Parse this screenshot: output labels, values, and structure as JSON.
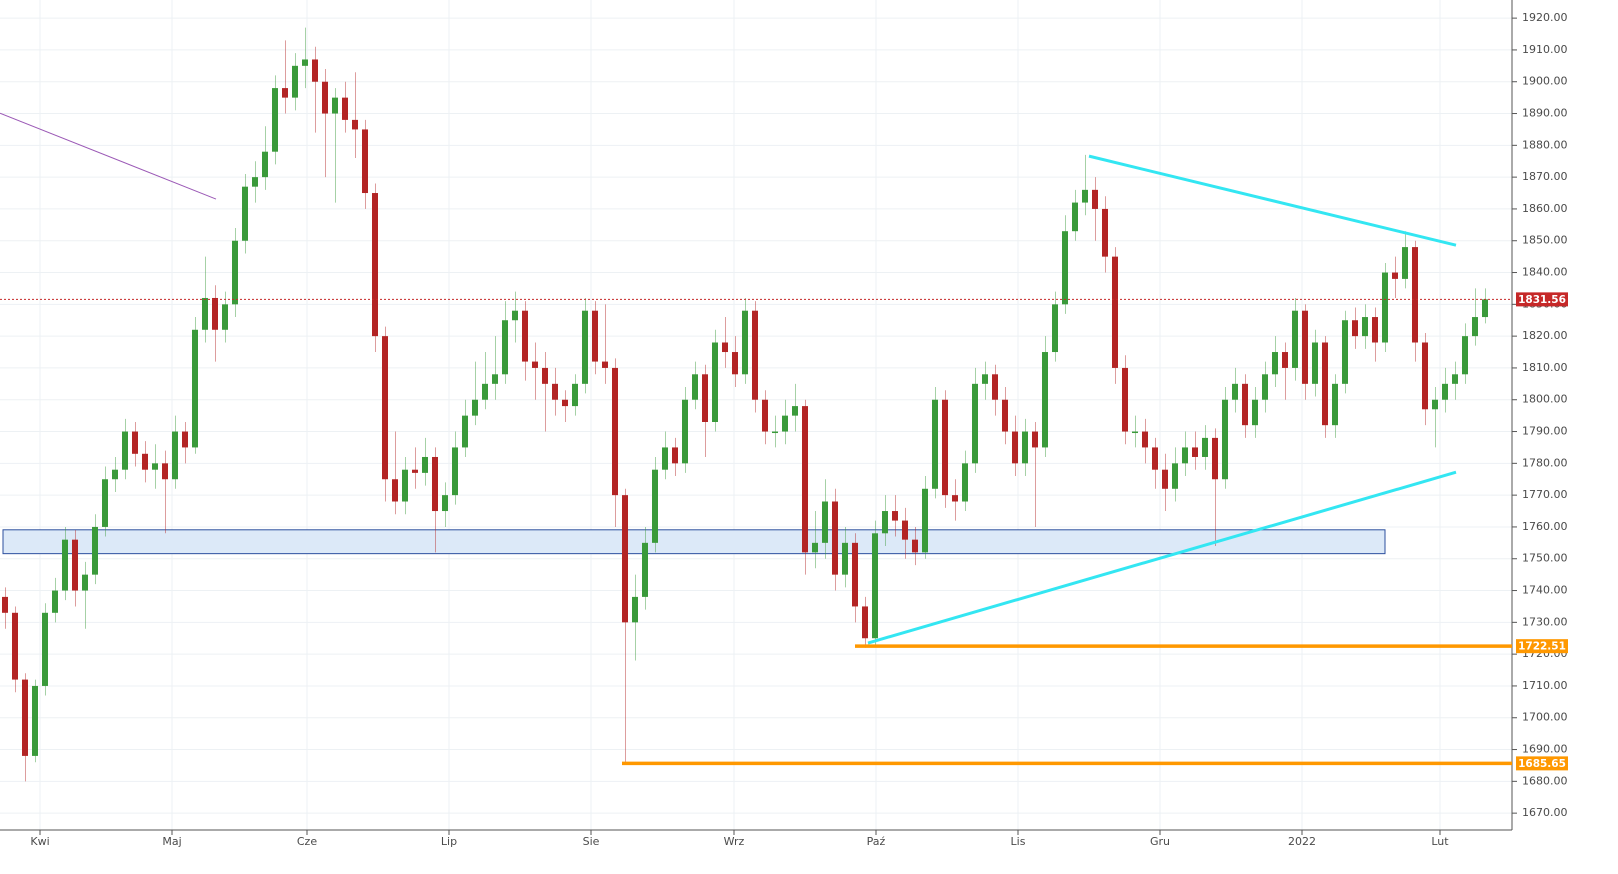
{
  "chart_data": {
    "type": "candlestick",
    "up_color": "#3a9a3a",
    "down_color": "#b32525",
    "grid": true,
    "xlim": [
      -0.5,
      150.7
    ],
    "ylim": [
      1664.7,
      1925.7
    ],
    "xticks": [
      {
        "value": 3.5,
        "label": "Kwi"
      },
      {
        "value": 16.7,
        "label": "Maj"
      },
      {
        "value": 30.2,
        "label": "Cze"
      },
      {
        "value": 44.4,
        "label": "Lip"
      },
      {
        "value": 58.6,
        "label": "Sie"
      },
      {
        "value": 72.9,
        "label": "Wrz"
      },
      {
        "value": 87.1,
        "label": "Paź"
      },
      {
        "value": 101.3,
        "label": "Lis"
      },
      {
        "value": 115.5,
        "label": "Gru"
      },
      {
        "value": 129.7,
        "label": "2022"
      },
      {
        "value": 143.5,
        "label": "Lut"
      }
    ],
    "yticks": [
      {
        "value": 1670,
        "label": "1670.00"
      },
      {
        "value": 1680,
        "label": "1680.00"
      },
      {
        "value": 1690,
        "label": "1690.00"
      },
      {
        "value": 1700,
        "label": "1700.00"
      },
      {
        "value": 1710,
        "label": "1710.00"
      },
      {
        "value": 1720,
        "label": "1720.00"
      },
      {
        "value": 1730,
        "label": "1730.00"
      },
      {
        "value": 1740,
        "label": "1740.00"
      },
      {
        "value": 1750,
        "label": "1750.00"
      },
      {
        "value": 1760,
        "label": "1760.00"
      },
      {
        "value": 1770,
        "label": "1770.00"
      },
      {
        "value": 1780,
        "label": "1780.00"
      },
      {
        "value": 1790,
        "label": "1790.00"
      },
      {
        "value": 1800,
        "label": "1800.00"
      },
      {
        "value": 1810,
        "label": "1810.00"
      },
      {
        "value": 1820,
        "label": "1820.00"
      },
      {
        "value": 1830,
        "label": "1830.00"
      },
      {
        "value": 1840,
        "label": "1840.00"
      },
      {
        "value": 1850,
        "label": "1850.00"
      },
      {
        "value": 1860,
        "label": "1860.00"
      },
      {
        "value": 1870,
        "label": "1870.00"
      },
      {
        "value": 1880,
        "label": "1880.00"
      },
      {
        "value": 1890,
        "label": "1890.00"
      },
      {
        "value": 1900,
        "label": "1900.00"
      },
      {
        "value": 1910,
        "label": "1910.00"
      },
      {
        "value": 1920,
        "label": "1920.00"
      }
    ],
    "x": [
      0,
      1,
      2,
      3,
      4,
      5,
      6,
      7,
      8,
      9,
      10,
      11,
      12,
      13,
      14,
      15,
      16,
      17,
      18,
      19,
      20,
      21,
      22,
      23,
      24,
      25,
      26,
      27,
      28,
      29,
      30,
      31,
      32,
      33,
      34,
      35,
      36,
      37,
      38,
      39,
      40,
      41,
      42,
      43,
      44,
      45,
      46,
      47,
      48,
      49,
      50,
      51,
      52,
      53,
      54,
      55,
      56,
      57,
      58,
      59,
      60,
      61,
      62,
      63,
      64,
      65,
      66,
      67,
      68,
      69,
      70,
      71,
      72,
      73,
      74,
      75,
      76,
      77,
      78,
      79,
      80,
      81,
      82,
      83,
      84,
      85,
      86,
      87,
      88,
      89,
      90,
      91,
      92,
      93,
      94,
      95,
      96,
      97,
      98,
      99,
      100,
      101,
      102,
      103,
      104,
      105,
      106,
      107,
      108,
      109,
      110,
      111,
      112,
      113,
      114,
      115,
      116,
      117,
      118,
      119,
      120,
      121,
      122,
      123,
      124,
      125,
      126,
      127,
      128,
      129,
      130,
      131,
      132,
      133,
      134,
      135,
      136,
      137,
      138,
      139,
      140,
      141,
      142,
      143,
      144,
      145,
      146,
      147,
      148
    ],
    "ohlc": [
      [
        1738,
        1741,
        1728,
        1733
      ],
      [
        1733,
        1735,
        1708,
        1712
      ],
      [
        1712,
        1714,
        1680,
        1688
      ],
      [
        1688,
        1712,
        1686,
        1710
      ],
      [
        1710,
        1736,
        1707,
        1733
      ],
      [
        1733,
        1744,
        1730,
        1740
      ],
      [
        1740,
        1760,
        1737,
        1756
      ],
      [
        1756,
        1759,
        1735,
        1740
      ],
      [
        1740,
        1749,
        1728,
        1745
      ],
      [
        1745,
        1764,
        1742,
        1760
      ],
      [
        1760,
        1779,
        1757,
        1775
      ],
      [
        1775,
        1782,
        1771,
        1778
      ],
      [
        1778,
        1794,
        1775,
        1790
      ],
      [
        1790,
        1793,
        1779,
        1783
      ],
      [
        1783,
        1787,
        1774,
        1778
      ],
      [
        1778,
        1786,
        1772,
        1780
      ],
      [
        1780,
        1784,
        1758,
        1775
      ],
      [
        1775,
        1795,
        1772,
        1790
      ],
      [
        1790,
        1793,
        1780,
        1785
      ],
      [
        1785,
        1826,
        1783,
        1822
      ],
      [
        1822,
        1845,
        1818,
        1832
      ],
      [
        1832,
        1836,
        1812,
        1822
      ],
      [
        1822,
        1834,
        1818,
        1830
      ],
      [
        1830,
        1854,
        1826,
        1850
      ],
      [
        1850,
        1871,
        1846,
        1867
      ],
      [
        1867,
        1875,
        1862,
        1870
      ],
      [
        1870,
        1886,
        1866,
        1878
      ],
      [
        1878,
        1902,
        1874,
        1898
      ],
      [
        1898,
        1913,
        1890,
        1895
      ],
      [
        1895,
        1909,
        1891,
        1905
      ],
      [
        1905,
        1917,
        1898,
        1907
      ],
      [
        1907,
        1911,
        1884,
        1900
      ],
      [
        1900,
        1904,
        1870,
        1890
      ],
      [
        1890,
        1898,
        1862,
        1895
      ],
      [
        1895,
        1900,
        1884,
        1888
      ],
      [
        1888,
        1903,
        1876,
        1885
      ],
      [
        1885,
        1888,
        1860,
        1865
      ],
      [
        1865,
        1868,
        1815,
        1820
      ],
      [
        1820,
        1823,
        1768,
        1775
      ],
      [
        1775,
        1790,
        1764,
        1768
      ],
      [
        1768,
        1782,
        1764,
        1778
      ],
      [
        1778,
        1785,
        1772,
        1777
      ],
      [
        1777,
        1788,
        1773,
        1782
      ],
      [
        1782,
        1785,
        1752,
        1765
      ],
      [
        1765,
        1774,
        1760,
        1770
      ],
      [
        1770,
        1790,
        1767,
        1785
      ],
      [
        1785,
        1800,
        1782,
        1795
      ],
      [
        1795,
        1812,
        1792,
        1800
      ],
      [
        1800,
        1815,
        1797,
        1805
      ],
      [
        1805,
        1820,
        1800,
        1808
      ],
      [
        1808,
        1831,
        1805,
        1825
      ],
      [
        1825,
        1834,
        1818,
        1828
      ],
      [
        1828,
        1831,
        1806,
        1812
      ],
      [
        1812,
        1818,
        1800,
        1810
      ],
      [
        1810,
        1815,
        1790,
        1805
      ],
      [
        1805,
        1810,
        1795,
        1800
      ],
      [
        1800,
        1803,
        1793,
        1798
      ],
      [
        1798,
        1808,
        1795,
        1805
      ],
      [
        1805,
        1832,
        1802,
        1828
      ],
      [
        1828,
        1831,
        1808,
        1812
      ],
      [
        1812,
        1830,
        1805,
        1810
      ],
      [
        1810,
        1813,
        1760,
        1770
      ],
      [
        1770,
        1772,
        1686,
        1730
      ],
      [
        1730,
        1745,
        1718,
        1738
      ],
      [
        1738,
        1760,
        1734,
        1755
      ],
      [
        1755,
        1782,
        1752,
        1778
      ],
      [
        1778,
        1790,
        1775,
        1785
      ],
      [
        1785,
        1788,
        1776,
        1780
      ],
      [
        1780,
        1804,
        1777,
        1800
      ],
      [
        1800,
        1812,
        1797,
        1808
      ],
      [
        1808,
        1811,
        1782,
        1793
      ],
      [
        1793,
        1822,
        1790,
        1818
      ],
      [
        1818,
        1826,
        1810,
        1815
      ],
      [
        1815,
        1820,
        1804,
        1808
      ],
      [
        1808,
        1832,
        1805,
        1828
      ],
      [
        1828,
        1831,
        1796,
        1800
      ],
      [
        1800,
        1803,
        1786,
        1790
      ],
      [
        1790,
        1795,
        1785,
        1790
      ],
      [
        1790,
        1800,
        1786,
        1795
      ],
      [
        1795,
        1805,
        1790,
        1798
      ],
      [
        1798,
        1800,
        1745,
        1752
      ],
      [
        1752,
        1765,
        1747,
        1755
      ],
      [
        1755,
        1775,
        1750,
        1768
      ],
      [
        1768,
        1772,
        1740,
        1745
      ],
      [
        1745,
        1760,
        1741,
        1755
      ],
      [
        1755,
        1758,
        1730,
        1735
      ],
      [
        1735,
        1738,
        1722,
        1725
      ],
      [
        1725,
        1762,
        1723,
        1758
      ],
      [
        1758,
        1770,
        1754,
        1765
      ],
      [
        1765,
        1770,
        1757,
        1762
      ],
      [
        1762,
        1766,
        1750,
        1756
      ],
      [
        1756,
        1760,
        1748,
        1752
      ],
      [
        1752,
        1776,
        1750,
        1772
      ],
      [
        1772,
        1804,
        1769,
        1800
      ],
      [
        1800,
        1803,
        1766,
        1770
      ],
      [
        1770,
        1775,
        1762,
        1768
      ],
      [
        1768,
        1784,
        1765,
        1780
      ],
      [
        1780,
        1810,
        1777,
        1805
      ],
      [
        1805,
        1812,
        1800,
        1808
      ],
      [
        1808,
        1811,
        1795,
        1800
      ],
      [
        1800,
        1804,
        1786,
        1790
      ],
      [
        1790,
        1795,
        1776,
        1780
      ],
      [
        1780,
        1794,
        1776,
        1790
      ],
      [
        1790,
        1793,
        1760,
        1785
      ],
      [
        1785,
        1820,
        1782,
        1815
      ],
      [
        1815,
        1834,
        1812,
        1830
      ],
      [
        1830,
        1858,
        1827,
        1853
      ],
      [
        1853,
        1866,
        1850,
        1862
      ],
      [
        1862,
        1877,
        1858,
        1866
      ],
      [
        1866,
        1870,
        1850,
        1860
      ],
      [
        1860,
        1864,
        1840,
        1845
      ],
      [
        1845,
        1848,
        1805,
        1810
      ],
      [
        1810,
        1814,
        1786,
        1790
      ],
      [
        1790,
        1795,
        1785,
        1790
      ],
      [
        1790,
        1794,
        1780,
        1785
      ],
      [
        1785,
        1788,
        1772,
        1778
      ],
      [
        1778,
        1783,
        1765,
        1772
      ],
      [
        1772,
        1785,
        1768,
        1780
      ],
      [
        1780,
        1790,
        1776,
        1785
      ],
      [
        1785,
        1790,
        1778,
        1782
      ],
      [
        1782,
        1792,
        1778,
        1788
      ],
      [
        1788,
        1791,
        1754,
        1775
      ],
      [
        1775,
        1804,
        1772,
        1800
      ],
      [
        1800,
        1810,
        1796,
        1805
      ],
      [
        1805,
        1808,
        1788,
        1792
      ],
      [
        1792,
        1804,
        1788,
        1800
      ],
      [
        1800,
        1812,
        1796,
        1808
      ],
      [
        1808,
        1820,
        1804,
        1815
      ],
      [
        1815,
        1818,
        1800,
        1810
      ],
      [
        1810,
        1832,
        1806,
        1828
      ],
      [
        1828,
        1830,
        1800,
        1805
      ],
      [
        1805,
        1822,
        1801,
        1818
      ],
      [
        1818,
        1820,
        1788,
        1792
      ],
      [
        1792,
        1808,
        1788,
        1805
      ],
      [
        1805,
        1828,
        1802,
        1825
      ],
      [
        1825,
        1829,
        1816,
        1820
      ],
      [
        1820,
        1830,
        1816,
        1826
      ],
      [
        1826,
        1829,
        1812,
        1818
      ],
      [
        1818,
        1843,
        1815,
        1840
      ],
      [
        1840,
        1845,
        1832,
        1838
      ],
      [
        1838,
        1853,
        1835,
        1848
      ],
      [
        1848,
        1850,
        1812,
        1818
      ],
      [
        1818,
        1821,
        1792,
        1797
      ],
      [
        1797,
        1804,
        1785,
        1800
      ],
      [
        1800,
        1810,
        1796,
        1805
      ],
      [
        1805,
        1812,
        1800,
        1808
      ],
      [
        1808,
        1824,
        1805,
        1820
      ],
      [
        1820,
        1835,
        1817,
        1826
      ],
      [
        1826,
        1835,
        1824,
        1831.56
      ]
    ],
    "hlines": [
      {
        "value": 1831.56,
        "color": "#c62828",
        "from": -0.5,
        "style": "dotted"
      },
      {
        "value": 1722.51,
        "color": "#ff9800",
        "from": 85
      },
      {
        "value": 1685.65,
        "color": "#ff9800",
        "from": 61.7
      }
    ],
    "trendlines": [
      {
        "color": "#9b59b6",
        "points": [
          [
            -0.5,
            1890.1
          ],
          [
            21.1,
            1863.1
          ]
        ]
      },
      {
        "color": "#33e6f2",
        "points": [
          [
            108.4,
            1876.6
          ],
          [
            145.1,
            1848.6
          ]
        ]
      },
      {
        "color": "#33e6f2",
        "points": [
          [
            86.3,
            1723.5
          ],
          [
            145.1,
            1777.2
          ]
        ]
      }
    ],
    "zone": {
      "x": [
        -0.2,
        138
      ],
      "y": [
        1751.6,
        1759.1
      ],
      "color": "#dce9f8",
      "border": "#2c4f9e"
    }
  }
}
